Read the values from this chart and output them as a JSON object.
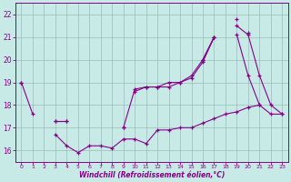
{
  "x_all": [
    0,
    1,
    2,
    3,
    4,
    5,
    6,
    7,
    8,
    9,
    10,
    11,
    12,
    13,
    14,
    15,
    16,
    17,
    18,
    19,
    20,
    21,
    22,
    23
  ],
  "line_bottom": [
    19.0,
    17.6,
    null,
    16.7,
    16.2,
    15.9,
    16.2,
    16.2,
    16.1,
    16.5,
    16.5,
    16.3,
    16.9,
    16.9,
    17.0,
    17.0,
    17.2,
    17.4,
    17.6,
    17.7,
    17.9,
    18.0,
    17.6,
    17.6
  ],
  "line_mid": [
    null,
    null,
    null,
    17.3,
    17.3,
    null,
    null,
    null,
    null,
    17.0,
    18.7,
    18.8,
    18.8,
    19.0,
    19.0,
    19.3,
    20.0,
    21.0,
    null,
    21.5,
    21.1,
    19.3,
    18.0,
    17.6
  ],
  "line_peak": [
    null,
    null,
    null,
    null,
    null,
    null,
    null,
    null,
    null,
    null,
    null,
    null,
    null,
    null,
    null,
    null,
    null,
    null,
    null,
    21.8,
    null,
    null,
    null,
    null
  ],
  "line_upper1": [
    19.0,
    null,
    null,
    17.3,
    17.3,
    null,
    null,
    null,
    null,
    17.0,
    null,
    null,
    null,
    null,
    null,
    null,
    20.0,
    21.0,
    null,
    null,
    21.2,
    null,
    null,
    null
  ],
  "line_upper2": [
    null,
    null,
    null,
    null,
    null,
    null,
    null,
    null,
    null,
    null,
    18.6,
    18.8,
    18.8,
    18.8,
    19.0,
    19.2,
    19.9,
    21.0,
    null,
    21.1,
    19.3,
    18.0,
    null,
    null
  ],
  "background_color": "#c8eae6",
  "line_color": "#880088",
  "grid_color": "#99bbbb",
  "xlabel": "Windchill (Refroidissement éolien,°C)",
  "ylim": [
    15.5,
    22.5
  ],
  "xlim": [
    -0.5,
    23.5
  ],
  "yticks": [
    16,
    17,
    18,
    19,
    20,
    21,
    22
  ],
  "xticks": [
    0,
    1,
    2,
    3,
    4,
    5,
    6,
    7,
    8,
    9,
    10,
    11,
    12,
    13,
    14,
    15,
    16,
    17,
    18,
    19,
    20,
    21,
    22,
    23
  ]
}
